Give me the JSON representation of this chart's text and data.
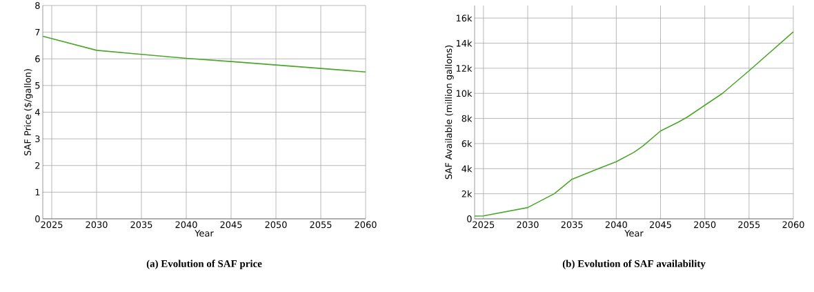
{
  "chart_data": [
    {
      "type": "line",
      "title": "(a) Evolution of SAF price",
      "xlabel": "Year",
      "ylabel": "SAF Price ($/gallon)",
      "x": [
        2024,
        2030,
        2035,
        2040,
        2045,
        2050,
        2055,
        2060
      ],
      "series": [
        {
          "color": "#4aa628",
          "values": [
            6.85,
            6.32,
            6.17,
            6.02,
            5.9,
            5.77,
            5.64,
            5.51
          ]
        }
      ],
      "xlim": [
        2024,
        2060
      ],
      "xticks": [
        2025,
        2030,
        2035,
        2040,
        2045,
        2050,
        2055,
        2060
      ],
      "ylim": [
        0,
        8
      ],
      "yticks": [
        0,
        1,
        2,
        3,
        4,
        5,
        6,
        7,
        8
      ],
      "grid": true,
      "marker": "none",
      "line_style": "solid"
    },
    {
      "type": "line",
      "title": "(b) Evolution of SAF availability",
      "xlabel": "Year",
      "ylabel": "SAF Available (million gallons)",
      "x": [
        2024,
        2025,
        2030,
        2033,
        2035,
        2038,
        2040,
        2042,
        2043,
        2045,
        2047,
        2048,
        2050,
        2052,
        2055,
        2060
      ],
      "series": [
        {
          "color": "#4aa628",
          "values": [
            220,
            230,
            900,
            2000,
            3150,
            4000,
            4550,
            5300,
            5800,
            7000,
            7700,
            8100,
            9050,
            10000,
            11800,
            14900
          ]
        }
      ],
      "xlim": [
        2024,
        2060
      ],
      "xticks": [
        2025,
        2030,
        2035,
        2040,
        2045,
        2050,
        2055,
        2060
      ],
      "ylim": [
        0,
        17000
      ],
      "yticks": [
        0,
        {
          "value": 2000,
          "label": "2k"
        },
        {
          "value": 4000,
          "label": "4k"
        },
        {
          "value": 6000,
          "label": "6k"
        },
        {
          "value": 8000,
          "label": "8k"
        },
        {
          "value": 10000,
          "label": "10k"
        },
        {
          "value": 12000,
          "label": "12k"
        },
        {
          "value": 14000,
          "label": "14k"
        },
        {
          "value": 16000,
          "label": "16k"
        }
      ],
      "grid": true,
      "marker": "none",
      "line_style": "solid"
    }
  ]
}
